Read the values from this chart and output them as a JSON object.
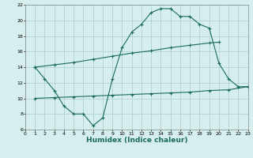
{
  "line1_x": [
    1,
    2,
    3,
    4,
    5,
    6,
    7,
    8,
    9,
    10,
    11,
    12,
    13,
    14,
    15,
    16,
    17,
    18,
    19,
    20,
    21,
    22,
    23
  ],
  "line1_y": [
    14.0,
    12.5,
    11.0,
    9.0,
    8.0,
    8.0,
    6.5,
    7.5,
    12.5,
    16.5,
    18.5,
    19.5,
    21.0,
    21.5,
    21.5,
    20.5,
    20.5,
    19.5,
    19.0,
    14.5,
    12.5,
    11.5,
    11.5
  ],
  "line2_x": [
    1,
    3,
    5,
    7,
    9,
    11,
    13,
    15,
    17,
    19,
    20
  ],
  "line2_y": [
    14.0,
    14.3,
    14.6,
    15.0,
    15.4,
    15.8,
    16.1,
    16.5,
    16.8,
    17.1,
    17.2
  ],
  "line3_x": [
    1,
    3,
    5,
    7,
    9,
    11,
    13,
    15,
    17,
    19,
    21,
    23
  ],
  "line3_y": [
    10.0,
    10.1,
    10.2,
    10.3,
    10.4,
    10.5,
    10.6,
    10.7,
    10.8,
    11.0,
    11.1,
    11.5
  ],
  "color": "#1a6b5a",
  "bg_color": "#d6eeee",
  "grid_color": "#aacccc",
  "xlabel": "Humidex (Indice chaleur)",
  "xlim": [
    0,
    23
  ],
  "ylim": [
    6,
    22
  ],
  "xticks": [
    0,
    1,
    2,
    3,
    4,
    5,
    6,
    7,
    8,
    9,
    10,
    11,
    12,
    13,
    14,
    15,
    16,
    17,
    18,
    19,
    20,
    21,
    22,
    23
  ],
  "yticks": [
    6,
    8,
    10,
    12,
    14,
    16,
    18,
    20,
    22
  ],
  "tick_fontsize": 4.5,
  "label_fontsize": 6.5,
  "marker_size": 2.5,
  "line_width": 0.8
}
